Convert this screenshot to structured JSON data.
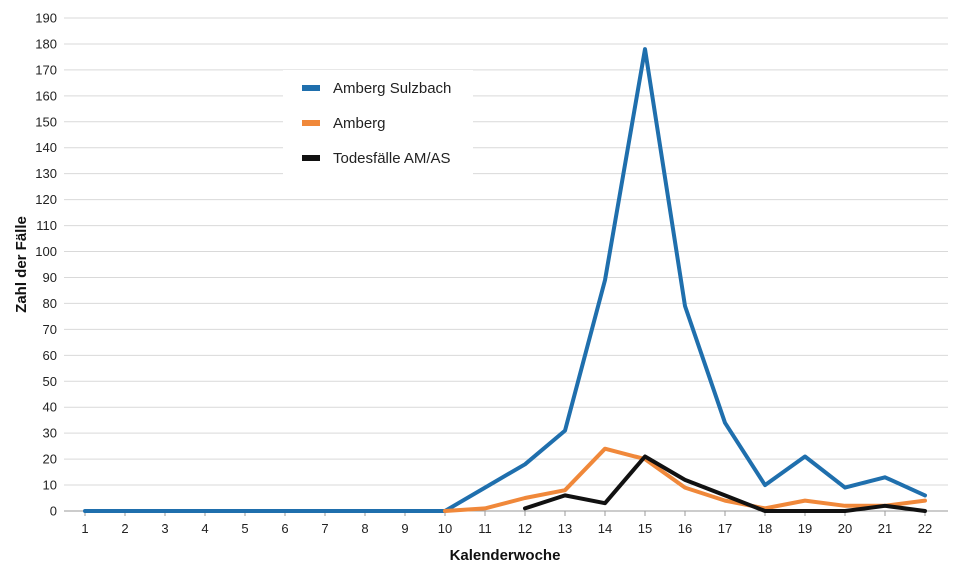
{
  "chart_data": {
    "type": "line",
    "xlabel": "Kalenderwoche",
    "ylabel": "Zahl der Fälle",
    "x": [
      1,
      2,
      3,
      4,
      5,
      6,
      7,
      8,
      9,
      10,
      11,
      12,
      13,
      14,
      15,
      16,
      17,
      18,
      19,
      20,
      21,
      22
    ],
    "ylim": [
      0,
      190
    ],
    "yticks": [
      0,
      10,
      20,
      30,
      40,
      50,
      60,
      70,
      80,
      90,
      100,
      110,
      120,
      130,
      140,
      150,
      160,
      170,
      180,
      190
    ],
    "grid": "horizontal",
    "legend_position": "top-left",
    "series": [
      {
        "name": "Amberg Sulzbach",
        "color": "#1f6fad",
        "values": [
          0,
          0,
          0,
          0,
          0,
          0,
          0,
          0,
          0,
          0,
          9,
          18,
          31,
          89,
          178,
          79,
          34,
          10,
          21,
          9,
          13,
          6
        ]
      },
      {
        "name": "Amberg",
        "color": "#f0883a",
        "values": [
          null,
          null,
          null,
          null,
          null,
          null,
          null,
          null,
          null,
          0,
          1,
          5,
          8,
          24,
          20,
          9,
          4,
          1,
          4,
          2,
          2,
          4
        ]
      },
      {
        "name": "Todesfälle AM/AS",
        "color": "#111111",
        "values": [
          null,
          null,
          null,
          null,
          null,
          null,
          null,
          null,
          null,
          null,
          null,
          1,
          6,
          3,
          21,
          12,
          6,
          0,
          0,
          0,
          2,
          0
        ]
      }
    ]
  }
}
